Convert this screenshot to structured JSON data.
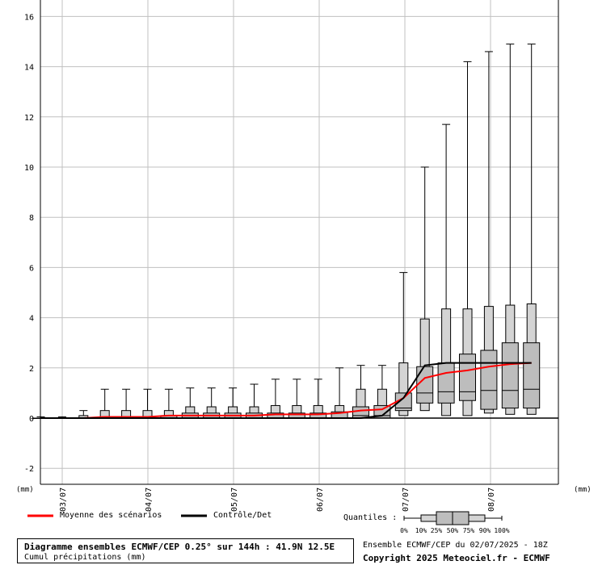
{
  "chart_data": {
    "type": "box",
    "title": "Diagramme ensembles ECMWF/CEP 0.25° sur 144h : 41.9N 12.5E",
    "subtitle": "Cumul précipitations (mm)",
    "y_unit_left": "(mm)",
    "y_unit_right": "(mm)",
    "ylim": [
      -2.6,
      16.6
    ],
    "yticks": [
      -2,
      0,
      2,
      4,
      6,
      8,
      10,
      12,
      14,
      16
    ],
    "x_day_labels": [
      "03/07",
      "04/07",
      "05/07",
      "06/07",
      "07/07",
      "08/07"
    ],
    "grid": true,
    "steps": [
      {
        "p10": 0,
        "p25": 0,
        "p50": 0,
        "p75": 0,
        "p90": 0,
        "max": 0.05
      },
      {
        "p10": 0,
        "p25": 0,
        "p50": 0,
        "p75": 0,
        "p90": 0,
        "max": 0.05
      },
      {
        "p10": 0,
        "p25": 0,
        "p50": 0,
        "p75": 0,
        "p90": 0.1,
        "max": 0.3
      },
      {
        "p10": 0,
        "p25": 0,
        "p50": 0,
        "p75": 0,
        "p90": 0.3,
        "max": 1.15
      },
      {
        "p10": 0,
        "p25": 0,
        "p50": 0,
        "p75": 0,
        "p90": 0.3,
        "max": 1.15
      },
      {
        "p10": 0,
        "p25": 0,
        "p50": 0,
        "p75": 0,
        "p90": 0.3,
        "max": 1.15
      },
      {
        "p10": 0,
        "p25": 0,
        "p50": 0,
        "p75": 0.1,
        "p90": 0.3,
        "max": 1.15
      },
      {
        "p10": 0,
        "p25": 0,
        "p50": 0,
        "p75": 0.2,
        "p90": 0.45,
        "max": 1.2
      },
      {
        "p10": 0,
        "p25": 0,
        "p50": 0,
        "p75": 0.2,
        "p90": 0.45,
        "max": 1.2
      },
      {
        "p10": 0,
        "p25": 0,
        "p50": 0,
        "p75": 0.2,
        "p90": 0.45,
        "max": 1.2
      },
      {
        "p10": 0,
        "p25": 0,
        "p50": 0,
        "p75": 0.2,
        "p90": 0.45,
        "max": 1.35
      },
      {
        "p10": 0,
        "p25": 0,
        "p50": 0,
        "p75": 0.2,
        "p90": 0.5,
        "max": 1.55
      },
      {
        "p10": 0,
        "p25": 0,
        "p50": 0,
        "p75": 0.2,
        "p90": 0.5,
        "max": 1.55
      },
      {
        "p10": 0,
        "p25": 0,
        "p50": 0,
        "p75": 0.2,
        "p90": 0.5,
        "max": 1.55
      },
      {
        "p10": 0,
        "p25": 0,
        "p50": 0,
        "p75": 0.25,
        "p90": 0.5,
        "max": 2.0
      },
      {
        "p10": 0,
        "p25": 0,
        "p50": 0.1,
        "p75": 0.45,
        "p90": 1.15,
        "max": 2.1
      },
      {
        "p10": 0,
        "p25": 0,
        "p50": 0.1,
        "p75": 0.5,
        "p90": 1.15,
        "max": 2.1
      },
      {
        "p10": 0.1,
        "p25": 0.3,
        "p50": 0.4,
        "p75": 1.0,
        "p90": 2.2,
        "max": 5.8
      },
      {
        "p10": 0.3,
        "p25": 0.6,
        "p50": 1.0,
        "p75": 2.05,
        "p90": 3.95,
        "max": 10.0
      },
      {
        "p10": 0.1,
        "p25": 0.6,
        "p50": 1.05,
        "p75": 2.2,
        "p90": 4.35,
        "max": 11.7
      },
      {
        "p10": 0.1,
        "p25": 0.7,
        "p50": 1.05,
        "p75": 2.55,
        "p90": 4.35,
        "max": 14.2
      },
      {
        "p10": 0.2,
        "p25": 0.35,
        "p50": 1.1,
        "p75": 2.7,
        "p90": 4.45,
        "max": 14.6
      },
      {
        "p10": 0.15,
        "p25": 0.4,
        "p50": 1.1,
        "p75": 3.0,
        "p90": 4.5,
        "max": 14.9
      },
      {
        "p10": 0.15,
        "p25": 0.4,
        "p50": 1.15,
        "p75": 3.0,
        "p90": 4.55,
        "max": 14.9
      }
    ],
    "series": [
      {
        "name": "Moyenne des scénarios",
        "color": "#ff0000",
        "values": [
          0,
          0,
          0,
          0.05,
          0.05,
          0.05,
          0.1,
          0.1,
          0.1,
          0.1,
          0.1,
          0.15,
          0.15,
          0.15,
          0.2,
          0.3,
          0.35,
          0.8,
          1.6,
          1.8,
          1.9,
          2.05,
          2.15,
          2.2
        ]
      },
      {
        "name": "Contrôle/Det",
        "color": "#000000",
        "values": [
          0,
          0,
          0,
          0,
          0,
          0,
          0,
          0,
          0,
          0,
          0,
          0,
          0,
          0,
          0,
          0,
          0.1,
          0.8,
          2.1,
          2.2,
          2.2,
          2.2,
          2.2,
          2.2
        ]
      }
    ]
  },
  "legend": {
    "quantiles_label": "Quantiles :",
    "quantile_ticks": [
      "0%",
      "10%",
      "25%",
      "50%",
      "75%",
      "90%",
      "100%"
    ]
  },
  "source": {
    "ensemble_line": "Ensemble ECMWF/CEP du 02/07/2025 - 18Z",
    "copyright": "Copyright 2025 Meteociel.fr - ECMWF"
  }
}
